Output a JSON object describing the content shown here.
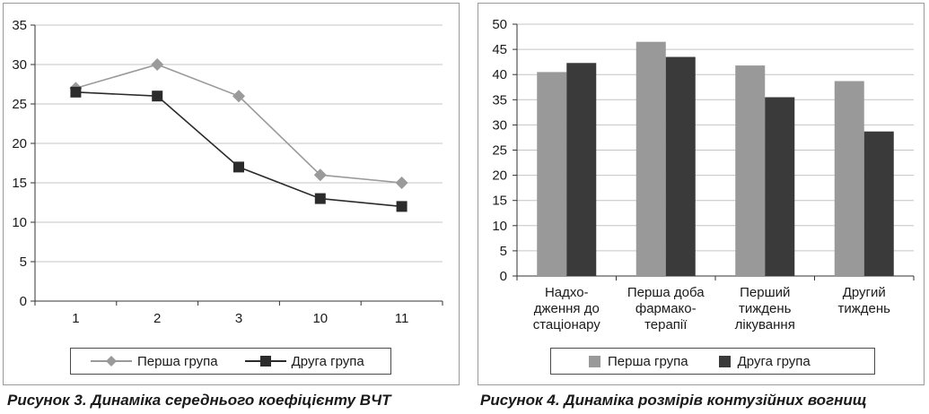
{
  "chart_data": [
    {
      "type": "line",
      "categories": [
        "1",
        "2",
        "3",
        "10",
        "11"
      ],
      "series": [
        {
          "name": "Перша група",
          "values": [
            27,
            30,
            26,
            16,
            15
          ],
          "color": "#9a9a9a",
          "marker": "diamond"
        },
        {
          "name": "Друга група",
          "values": [
            26.5,
            26,
            17,
            13,
            12
          ],
          "color": "#2b2b2b",
          "marker": "square"
        }
      ],
      "ylim": [
        0,
        35
      ],
      "yticks": [
        "0",
        "5",
        "10",
        "15",
        "20",
        "25",
        "30",
        "35"
      ],
      "grid": true,
      "legend_position": "bottom",
      "caption": "Рисунок 3. Динаміка середнього коефіцієнту ВЧТ"
    },
    {
      "type": "bar",
      "categories": [
        [
          "Надхо-",
          "дження до",
          "стаціонару"
        ],
        [
          "Перша доба",
          "фармако-",
          "терапії"
        ],
        [
          "Перший",
          "тиждень",
          "лікування"
        ],
        [
          "Другий",
          "тиждень"
        ]
      ],
      "series": [
        {
          "name": "Перша група",
          "values": [
            40.5,
            46.5,
            41.8,
            38.7
          ],
          "color": "#999999"
        },
        {
          "name": "Друга група",
          "values": [
            42.3,
            43.5,
            35.5,
            28.7
          ],
          "color": "#3a3a3a"
        }
      ],
      "ylim": [
        0,
        50
      ],
      "yticks": [
        "0",
        "5",
        "10",
        "15",
        "20",
        "25",
        "30",
        "35",
        "40",
        "45",
        "50"
      ],
      "grid": true,
      "legend_position": "bottom",
      "caption": "Рисунок 4.  Динаміка розмірів контузійних вогнищ"
    }
  ]
}
